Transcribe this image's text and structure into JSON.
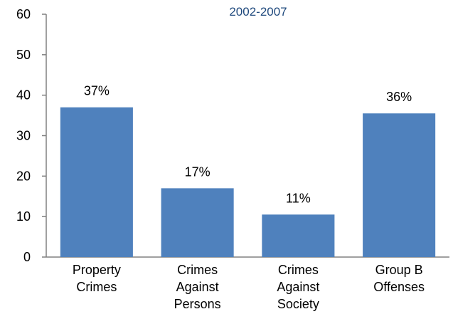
{
  "chart_data": {
    "type": "bar",
    "title": "2002-2007",
    "categories": [
      [
        "Property",
        "Crimes"
      ],
      [
        "Crimes",
        "Against",
        "Persons"
      ],
      [
        "Crimes",
        "Against",
        "Society"
      ],
      [
        "Group B",
        "Offenses"
      ]
    ],
    "values": [
      37,
      17,
      10.5,
      35.5
    ],
    "data_labels": [
      "37%",
      "17%",
      "11%",
      "36%"
    ],
    "ylim": [
      0,
      60
    ],
    "yticks": [
      "0",
      "10",
      "20",
      "30",
      "40",
      "50",
      "60"
    ],
    "grid": false,
    "legend": "none",
    "colors": {
      "bar": "#4f81bd",
      "title": "#1f497d",
      "axis": "#808080"
    }
  }
}
